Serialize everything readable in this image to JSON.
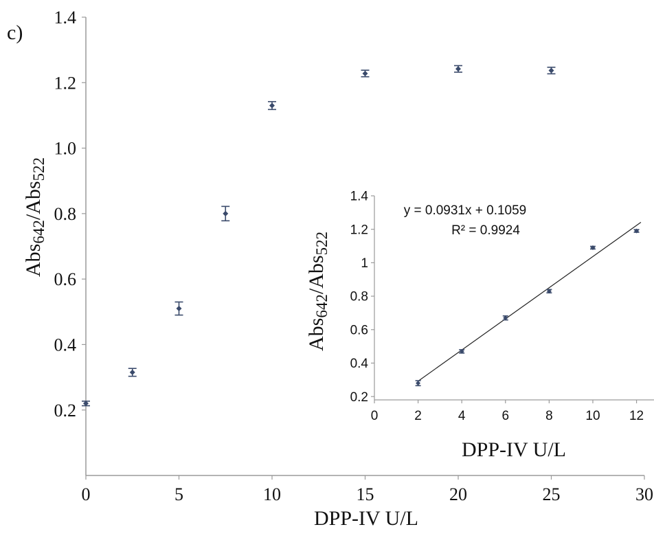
{
  "panel_label": "c)",
  "chart_data": [
    {
      "type": "scatter",
      "title": "",
      "xlabel": "DPP-IV U/L",
      "ylabel": {
        "main": "Abs",
        "sub1": "642",
        "sep": "/Abs",
        "sub2": "522"
      },
      "xlim": [
        0,
        30
      ],
      "ylim": [
        0,
        1.4
      ],
      "xticks": [
        0,
        5,
        10,
        15,
        20,
        25,
        30
      ],
      "xtick_labels": [
        "0",
        "5",
        "10",
        "15",
        "20",
        "25",
        "30"
      ],
      "yticks": [
        0.2,
        0.4,
        0.6,
        0.8,
        1.0,
        1.2,
        1.4
      ],
      "ytick_labels": [
        "0.2",
        "0.4",
        "0.6",
        "0.8",
        "1.0",
        "1.2",
        "1.4"
      ],
      "grid": false,
      "marker_color": "#3a4a6b",
      "series": [
        {
          "x": [
            0,
            2.5,
            5,
            7.5,
            10,
            15,
            20,
            25
          ],
          "y": [
            0.22,
            0.315,
            0.51,
            0.8,
            1.13,
            1.228,
            1.242,
            1.237
          ],
          "err": [
            0.007,
            0.012,
            0.02,
            0.022,
            0.012,
            0.01,
            0.01,
            0.01
          ]
        }
      ]
    },
    {
      "type": "scatter",
      "title": "",
      "xlabel": "DPP-IV U/L",
      "ylabel": {
        "main": "Abs",
        "sub1": "642",
        "sep": "/Abs",
        "sub2": "522"
      },
      "xlim": [
        0,
        12.8
      ],
      "ylim": [
        0.18,
        1.4
      ],
      "xticks": [
        0,
        2,
        4,
        6,
        8,
        10,
        12
      ],
      "xtick_labels": [
        "0",
        "2",
        "4",
        "6",
        "8",
        "10",
        "12"
      ],
      "yticks": [
        0.2,
        0.4,
        0.6,
        0.8,
        1,
        1.2,
        1.4
      ],
      "ytick_labels": [
        "0.2",
        "0.4",
        "0.6",
        "0.8",
        "1",
        "1.2",
        "1.4"
      ],
      "grid": false,
      "marker_color": "#3a4a6b",
      "fit": {
        "slope": 0.0931,
        "intercept": 0.1059,
        "x_range": [
          2,
          12.2
        ]
      },
      "annotations": [
        "y = 0.0931x + 0.1059",
        "R² = 0.9924"
      ],
      "series": [
        {
          "x": [
            2,
            4,
            6,
            8,
            10,
            12
          ],
          "y": [
            0.28,
            0.47,
            0.67,
            0.83,
            1.09,
            1.19
          ],
          "err": [
            0.015,
            0.01,
            0.012,
            0.01,
            0.008,
            0.008
          ]
        }
      ]
    }
  ]
}
